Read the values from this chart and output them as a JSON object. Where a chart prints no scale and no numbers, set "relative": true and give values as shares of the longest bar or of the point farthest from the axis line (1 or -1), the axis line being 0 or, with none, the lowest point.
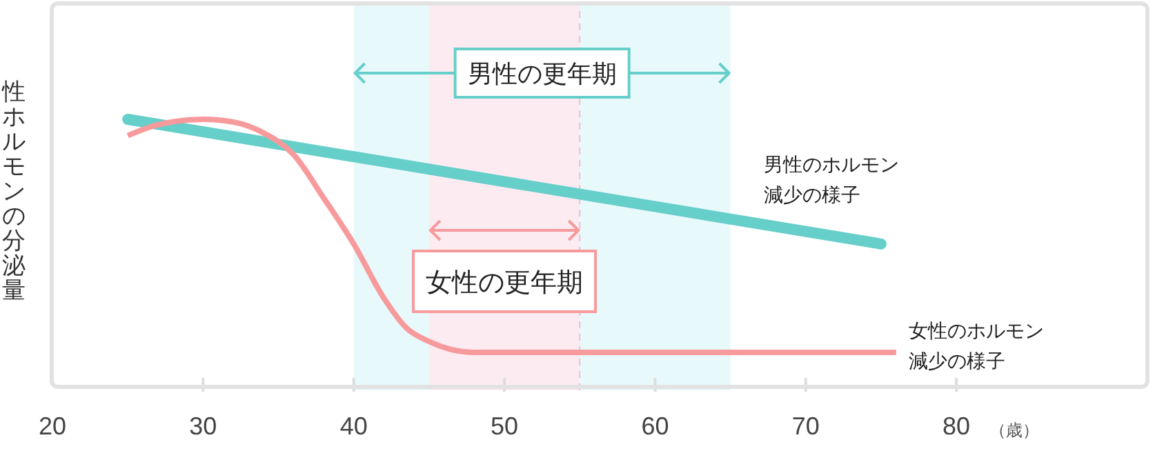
{
  "chart_data": {
    "type": "line",
    "relative": true,
    "xlabel": "（歳）",
    "ylabel": "性ホルモンの分泌量",
    "xlim": [
      20,
      93
    ],
    "xticks": [
      20,
      30,
      40,
      50,
      60,
      70,
      80
    ],
    "grid": false,
    "legend": false,
    "marker": "none",
    "series": [
      {
        "name": "男性のホルモン減少の様子",
        "color": "#66cfca",
        "x": [
          25,
          75
        ],
        "values": [
          1,
          0.54
        ]
      },
      {
        "name": "女性のホルモン減少の様子",
        "color": "#f79a9c",
        "x": [
          25,
          27,
          30,
          32,
          34,
          36,
          38,
          40,
          42,
          43.5,
          45,
          48,
          76
        ],
        "values": [
          0.94,
          0.98,
          1,
          0.99,
          0.95,
          0.87,
          0.71,
          0.54,
          0.34,
          0.23,
          0.18,
          0.14,
          0.14
        ]
      }
    ],
    "bands": [
      {
        "axis": "x",
        "from": 40,
        "to": 65,
        "color": "#e8f9fc",
        "label": "男性の更年期"
      },
      {
        "axis": "x",
        "from": 45,
        "to": 55,
        "color": "#fdebf2",
        "label": "女性の更年期"
      }
    ],
    "ref_lines": [
      {
        "axis": "x",
        "value": 55,
        "color": "#e8c2cc",
        "line_style": "dashed"
      }
    ]
  }
}
